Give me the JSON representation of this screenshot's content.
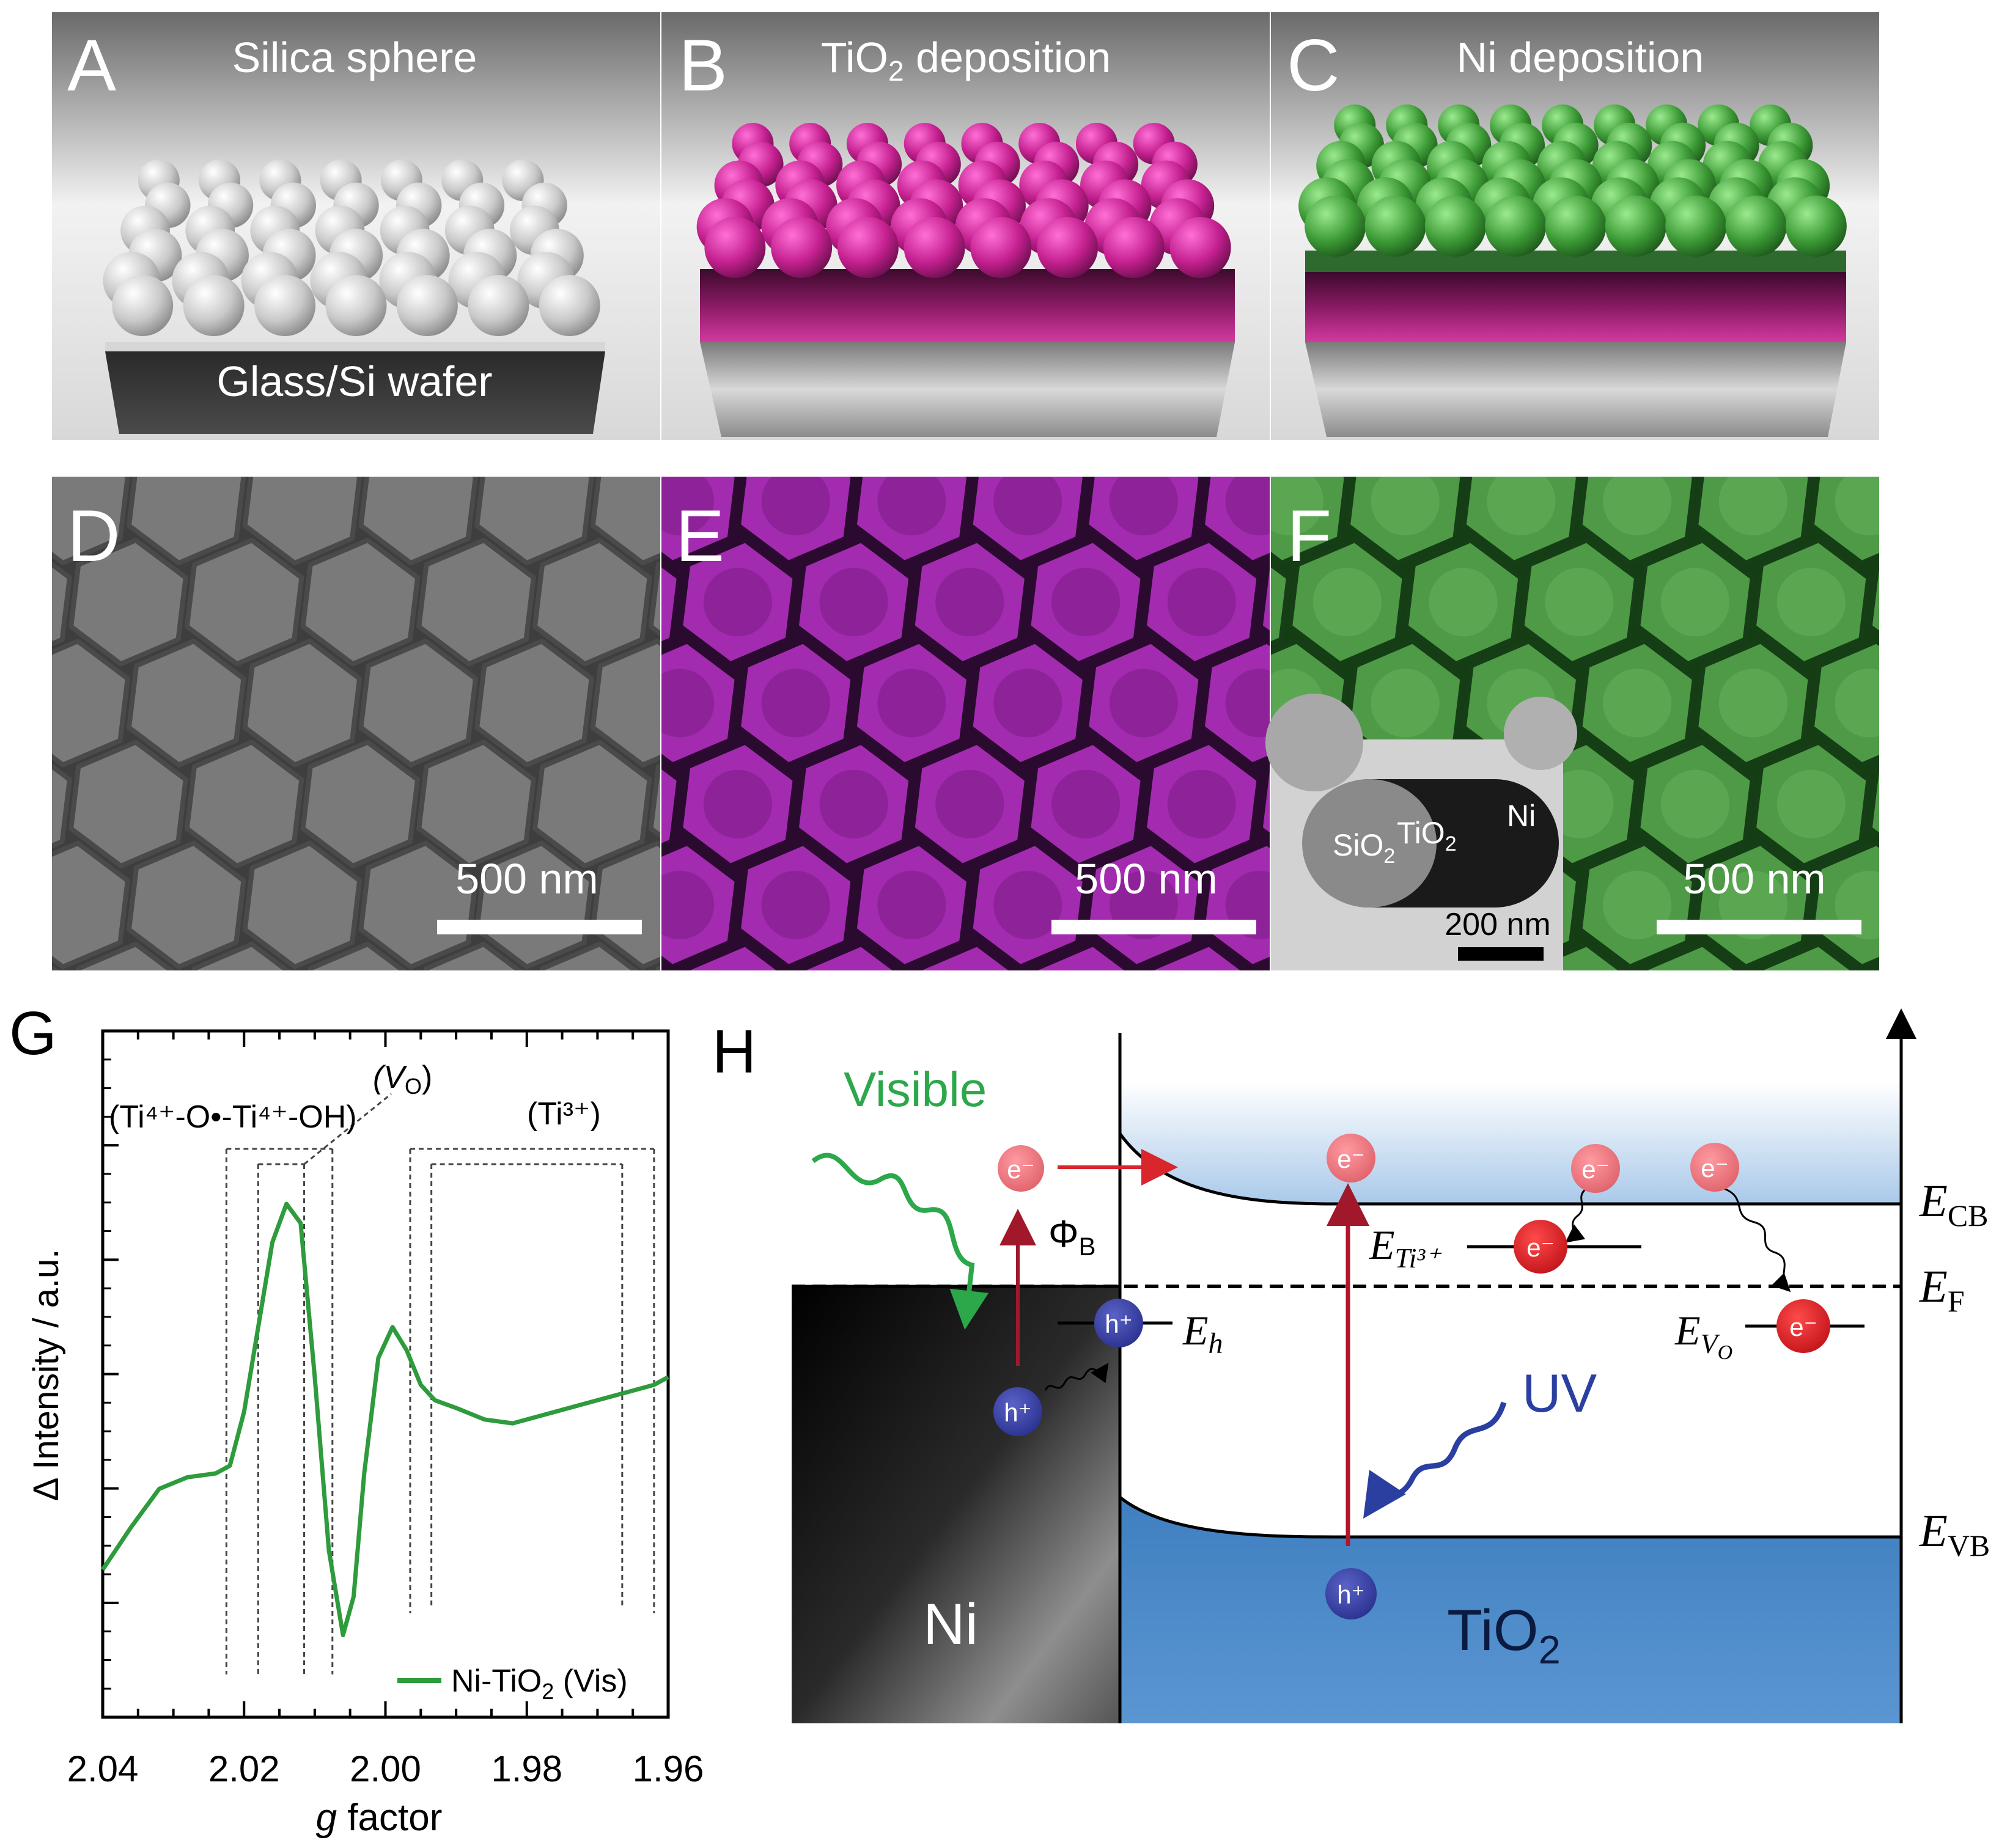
{
  "panels": {
    "a": {
      "letter": "A",
      "title": "Silica sphere",
      "substrate": "Glass/Si wafer"
    },
    "b": {
      "letter": "B",
      "title_main": "TiO",
      "title_sub": "2",
      "title_rest": " deposition"
    },
    "c": {
      "letter": "C",
      "title": "Ni deposition"
    },
    "d": {
      "letter": "D",
      "scale": "500 nm"
    },
    "e": {
      "letter": "E",
      "scale": "500 nm"
    },
    "f": {
      "letter": "F",
      "scale": "500 nm",
      "inset_scale": "200 nm",
      "inset_labels": {
        "sio": "SiO",
        "sio_sub": "2",
        "tio": "TiO",
        "tio_sub": "2",
        "ni": "Ni"
      }
    },
    "g": {
      "letter": "G"
    },
    "h": {
      "letter": "H"
    }
  },
  "colors": {
    "silica": "#bdbdbd",
    "tio2": "#c0289a",
    "ni": "#3a9a3a",
    "curve": "#2e9b3c",
    "tio2_band": "#3f7fc0"
  },
  "chart_data": {
    "type": "line",
    "xlabel_italic": "g",
    "xlabel_rest": " factor",
    "ylabel": "Δ Intensity / a.u.",
    "xlim": [
      2.04,
      1.96
    ],
    "x_ticks": [
      "2.04",
      "2.02",
      "2.00",
      "1.98",
      "1.96"
    ],
    "annotations": {
      "left": "(Ti⁴⁺-O•-Ti⁴⁺-OH)",
      "vo": "(V",
      "vo_sub": "O",
      "vo_close": ")",
      "ti3": "(Ti³⁺)"
    },
    "series": [
      {
        "name": "Ni-TiO2 (Vis)",
        "legend_main": "Ni-TiO",
        "legend_sub": "2",
        "legend_rest": " (Vis)",
        "x": [
          2.04,
          2.036,
          2.032,
          2.028,
          2.024,
          2.022,
          2.02,
          2.018,
          2.016,
          2.014,
          2.012,
          2.01,
          2.008,
          2.006,
          2.0045,
          2.003,
          2.001,
          1.999,
          1.997,
          1.995,
          1.993,
          1.99,
          1.986,
          1.982,
          1.978,
          1.974,
          1.97,
          1.966,
          1.962,
          1.96
        ],
        "y": [
          0.05,
          0.16,
          0.26,
          0.29,
          0.3,
          0.32,
          0.46,
          0.68,
          0.9,
          1.0,
          0.95,
          0.55,
          0.1,
          -0.12,
          -0.02,
          0.3,
          0.6,
          0.68,
          0.62,
          0.53,
          0.49,
          0.47,
          0.44,
          0.43,
          0.45,
          0.47,
          0.49,
          0.51,
          0.53,
          0.55
        ]
      }
    ]
  },
  "diagram_h": {
    "visible": "Visible",
    "uv": "UV",
    "ni": "Ni",
    "tio2": "TiO",
    "tio2_sub": "2",
    "phi": "Φ",
    "phi_sub": "B",
    "e": "e⁻",
    "h": "h⁺",
    "ecb": "E",
    "ecb_sub": "CB",
    "ef": "E",
    "ef_sub": "F",
    "evb": "E",
    "evb_sub": "VB",
    "eh": "E",
    "eh_sub": "h",
    "eti": "E",
    "eti_sub": "Ti³⁺",
    "evo": "E",
    "evo_sub": "V",
    "evo_subsub": "O"
  }
}
